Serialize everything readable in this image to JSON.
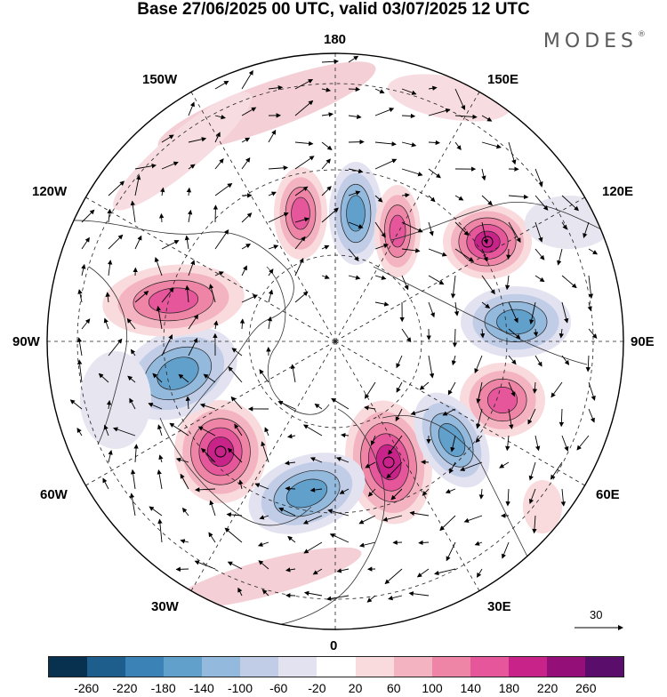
{
  "title": "Base 27/06/2025 00 UTC, valid 03/07/2025 12 UTC",
  "brand": "MODES",
  "brand_mark": "®",
  "map": {
    "projection": "north-polar-stereographic",
    "longitude_labels": {
      "top": "180",
      "bottom": "0",
      "left": "90W",
      "right": "90E",
      "upper_left_1": "150W",
      "upper_left_2": "120W",
      "upper_right_1": "150E",
      "upper_right_2": "120E",
      "lower_left_1": "60W",
      "lower_left_2": "30W",
      "lower_right_1": "60E",
      "lower_right_2": "30E"
    },
    "reference_vector_label": "30",
    "anomaly_centers": [
      {
        "name": "western-europe-positive",
        "sign": "positive",
        "strength": "strong"
      },
      {
        "name": "north-atlantic-negative",
        "sign": "negative",
        "strength": "moderate"
      },
      {
        "name": "greenland-south-positive",
        "sign": "positive",
        "strength": "strong"
      },
      {
        "name": "canada-east-negative",
        "sign": "negative",
        "strength": "moderate"
      },
      {
        "name": "canada-west-positive",
        "sign": "positive",
        "strength": "moderate"
      },
      {
        "name": "bering-positive",
        "sign": "positive",
        "strength": "moderate"
      },
      {
        "name": "east-siberian-negative",
        "sign": "negative",
        "strength": "moderate"
      },
      {
        "name": "chukchi-positive",
        "sign": "positive",
        "strength": "moderate"
      },
      {
        "name": "far-east-positive",
        "sign": "positive",
        "strength": "strong"
      },
      {
        "name": "central-siberia-negative",
        "sign": "negative",
        "strength": "moderate"
      },
      {
        "name": "west-siberia-positive",
        "sign": "positive",
        "strength": "moderate"
      },
      {
        "name": "scandinavia-negative",
        "sign": "negative",
        "strength": "moderate"
      }
    ]
  },
  "colorbar": {
    "colors": [
      "#08304f",
      "#1d5e8c",
      "#3b82b6",
      "#62a0cc",
      "#93b9dc",
      "#c1cde7",
      "#e3e2f1",
      "#ffffff",
      "#f9dadd",
      "#f4b3c0",
      "#ee85a6",
      "#e5569a",
      "#c82389",
      "#941078",
      "#5b0d6b"
    ],
    "tick_labels": [
      "-260",
      "-220",
      "-180",
      "-140",
      "-100",
      "-60",
      "-20",
      "20",
      "60",
      "100",
      "140",
      "180",
      "220",
      "260"
    ]
  }
}
